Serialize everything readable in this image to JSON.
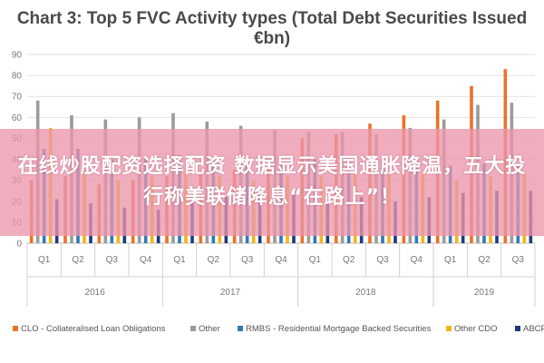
{
  "chart_data": {
    "type": "bar",
    "title": "Chart 3: Top 5 FVC Activity types (Total Debt Securities Issued €bn)",
    "ylim": [
      0,
      90
    ],
    "yticks": [
      0,
      10,
      20,
      30,
      40,
      50,
      60,
      70,
      80,
      90
    ],
    "grid": true,
    "legend_position": "bottom",
    "categories": [
      "Q1",
      "Q2",
      "Q3",
      "Q4",
      "Q1",
      "Q2",
      "Q3",
      "Q4",
      "Q1",
      "Q2",
      "Q3",
      "Q4",
      "Q1",
      "Q2",
      "Q3"
    ],
    "groups": [
      {
        "label": "2016",
        "count": 4
      },
      {
        "label": "2017",
        "count": 4
      },
      {
        "label": "2018",
        "count": 4
      },
      {
        "label": "2019",
        "count": 3
      }
    ],
    "series": [
      {
        "name": "CLO - Collateralised Loan Obligations",
        "color": "#ee7127",
        "values": [
          30,
          32,
          28,
          30,
          32,
          33,
          35,
          36,
          50,
          52,
          57,
          61,
          68,
          75,
          83
        ]
      },
      {
        "name": "Other",
        "color": "#9b9b9b",
        "values": [
          68,
          61,
          59,
          60,
          62,
          58,
          56,
          54,
          53,
          53,
          52,
          55,
          59,
          66,
          67
        ]
      },
      {
        "name": "RMBS - Residential Mortgage Backed Securities",
        "color": "#2e7ab4",
        "values": [
          45,
          45,
          40,
          40,
          42,
          40,
          38,
          38,
          40,
          40,
          40,
          40,
          37,
          38,
          37
        ]
      },
      {
        "name": "Other CDO",
        "color": "#f3b416",
        "values": [
          55,
          35,
          30,
          32,
          33,
          32,
          30,
          32,
          32,
          34,
          33,
          33,
          30,
          32,
          33
        ]
      },
      {
        "name": "ABCP",
        "color": "#1f3a7a",
        "values": [
          21,
          19,
          17,
          16,
          20,
          22,
          24,
          23,
          21,
          22,
          20,
          22,
          24,
          25,
          25
        ]
      }
    ]
  },
  "banner": {
    "text": "在线炒股配资选择配资 数据显示美国通胀降温，五大投行称美联储降息“在路上”！"
  }
}
